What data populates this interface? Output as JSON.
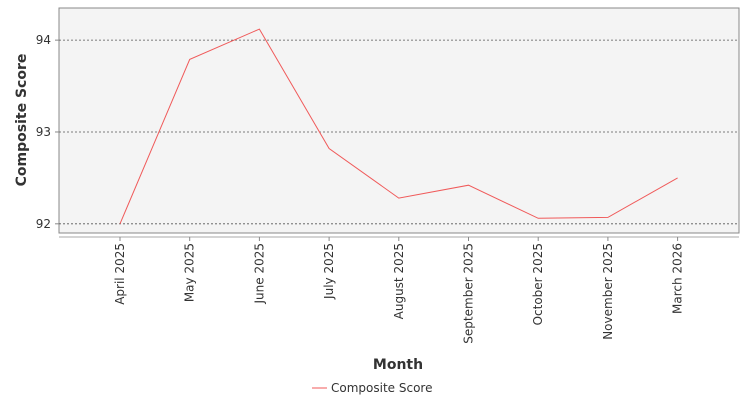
{
  "chart_data": {
    "type": "line",
    "title": "",
    "xlabel": "Month",
    "ylabel": "Composite Score",
    "categories": [
      "April 2025",
      "May 2025",
      "June 2025",
      "July 2025",
      "August 2025",
      "September 2025",
      "October 2025",
      "November 2025",
      "March 2026"
    ],
    "series": [
      {
        "name": "Composite Score",
        "values": [
          92.0,
          93.79,
          94.12,
          92.82,
          92.28,
          92.42,
          92.06,
          92.07,
          92.5
        ],
        "color": "#f05a5a"
      }
    ],
    "y_ticks": [
      "92",
      "93",
      "94"
    ],
    "ylim": [
      91.9,
      94.35
    ],
    "grid": "horizontal dashed",
    "legend_position": "bottom-center",
    "plot_background": "#f4f4f4"
  }
}
